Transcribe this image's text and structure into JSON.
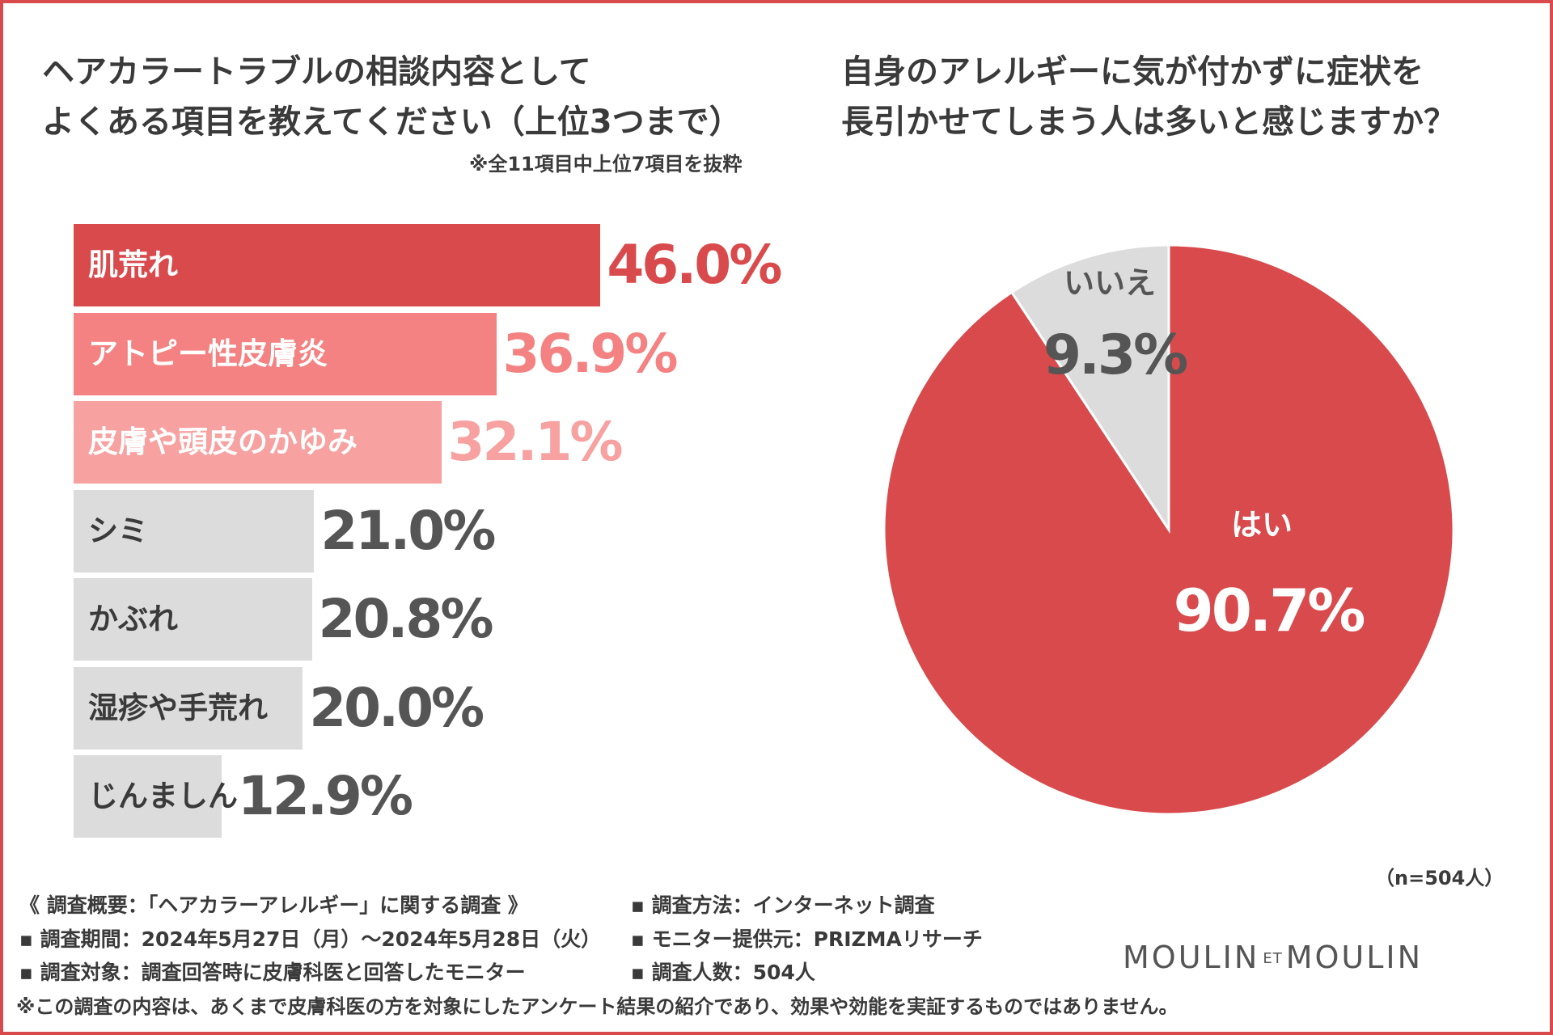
{
  "left_chart": {
    "title_line1": "ヘアカラートラブルの相談内容として",
    "title_line2": "よくある項目を教えてください（上位3つまで）",
    "note": "※全11項目中上位7項目を抜粋"
  },
  "right_chart": {
    "title_line1": "自身のアレルギーに気が付かずに症状を",
    "title_line2": "長引かせてしまう人は多いと感じますか？",
    "sample": "（n=504人）"
  },
  "chart_data": [
    {
      "type": "bar",
      "orientation": "horizontal",
      "title": "ヘアカラートラブルの相談内容としてよくある項目を教えてください（上位3つまで）",
      "unit": "%",
      "xlim": [
        0,
        50
      ],
      "categories": [
        "肌荒れ",
        "アトピー性皮膚炎",
        "皮膚や頭皮のかゆみ",
        "シミ",
        "かぶれ",
        "湿疹や手荒れ",
        "じんましん"
      ],
      "values": [
        46.0,
        36.9,
        32.1,
        21.0,
        20.8,
        20.0,
        12.9
      ],
      "value_labels": [
        "46.0%",
        "36.9%",
        "32.1%",
        "21.0%",
        "20.8%",
        "20.0%",
        "12.9%"
      ],
      "bar_colors": [
        "#d94a4d",
        "#f48282",
        "#f7a1a1",
        "#dcdcdc",
        "#dcdcdc",
        "#dcdcdc",
        "#dcdcdc"
      ],
      "label_colors": [
        "#ffffff",
        "#ffffff",
        "#ffffff",
        "#3a3a3a",
        "#3a3a3a",
        "#3a3a3a",
        "#3a3a3a"
      ],
      "value_colors": [
        "#d94a4d",
        "#f48282",
        "#f7a1a1",
        "#555555",
        "#555555",
        "#555555",
        "#555555"
      ]
    },
    {
      "type": "pie",
      "title": "自身のアレルギーに気が付かずに症状を長引かせてしまう人は多いと感じますか？",
      "categories": [
        "はい",
        "いいえ"
      ],
      "values": [
        90.7,
        9.3
      ],
      "value_labels": [
        "90.7%",
        "9.3%"
      ],
      "colors": [
        "#d94a4d",
        "#dcdcdc"
      ],
      "text_colors": [
        "#ffffff",
        "#555555"
      ]
    }
  ],
  "footer": {
    "summary": "《 調査概要：「ヘアカラーアレルギー」に関する調査 》",
    "period": "▪ 調査期間：2024年5月27日（月）～2024年5月28日（火）",
    "target": "▪ 調査対象：調査回答時に皮膚科医と回答したモニター",
    "method": "▪ 調査方法：インターネット調査",
    "provider": "▪ モニター提供元：PRIZMAリサーチ",
    "count": "▪ 調査人数：504人",
    "disclaimer": "※この調査の内容は、あくまで皮膚科医の方を対象にしたアンケート結果の紹介であり、効果や効能を実証するものではありません。"
  },
  "logo": {
    "left": "MOULIN",
    "middle": "ET",
    "right": "MOULIN"
  },
  "colors": {
    "accent": "#d94a4d",
    "gray": "#dcdcdc",
    "text": "#3a3a3a"
  }
}
